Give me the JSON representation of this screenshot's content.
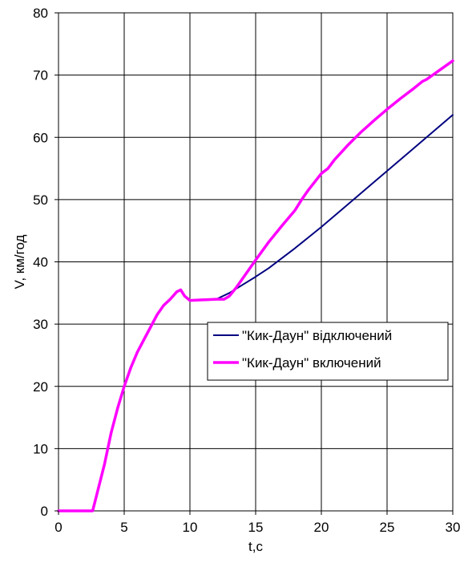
{
  "chart_data": {
    "type": "line",
    "xlabel": "t,c",
    "ylabel": "V, км/год",
    "xlim": [
      0,
      30
    ],
    "ylim": [
      0,
      80
    ],
    "x_ticks": [
      0,
      5,
      10,
      15,
      20,
      25,
      30
    ],
    "y_ticks": [
      0,
      10,
      20,
      30,
      40,
      50,
      60,
      70,
      80
    ],
    "grid": true,
    "legend_position": "center-right",
    "series": [
      {
        "name": "\"Кик-Даун\" відключений",
        "color": "#000080",
        "points": [
          [
            0,
            0
          ],
          [
            2.6,
            0
          ],
          [
            3.5,
            7.5
          ],
          [
            4.0,
            12.5
          ],
          [
            4.5,
            16.5
          ],
          [
            5.0,
            20.0
          ],
          [
            5.5,
            23.0
          ],
          [
            6.0,
            25.5
          ],
          [
            6.5,
            27.5
          ],
          [
            7.0,
            29.5
          ],
          [
            7.5,
            31.5
          ],
          [
            8.0,
            33.0
          ],
          [
            8.5,
            34.0
          ],
          [
            9.0,
            35.2
          ],
          [
            9.3,
            35.5
          ],
          [
            9.6,
            34.5
          ],
          [
            10.0,
            33.8
          ],
          [
            12.0,
            34.0
          ],
          [
            13.0,
            35.0
          ],
          [
            14.0,
            36.3
          ],
          [
            15.0,
            37.6
          ],
          [
            16.0,
            39.0
          ],
          [
            18.0,
            42.2
          ],
          [
            20.0,
            45.6
          ],
          [
            22.0,
            49.2
          ],
          [
            24.0,
            52.8
          ],
          [
            26.0,
            56.4
          ],
          [
            28.0,
            60.0
          ],
          [
            30.0,
            63.6
          ]
        ]
      },
      {
        "name": "\"Кик-Даун\" включений",
        "color": "#FF00FF",
        "points": [
          [
            0,
            0
          ],
          [
            2.6,
            0
          ],
          [
            3.5,
            7.5
          ],
          [
            4.0,
            12.5
          ],
          [
            4.5,
            16.5
          ],
          [
            5.0,
            20.0
          ],
          [
            5.5,
            23.0
          ],
          [
            6.0,
            25.5
          ],
          [
            6.5,
            27.5
          ],
          [
            7.0,
            29.5
          ],
          [
            7.5,
            31.5
          ],
          [
            8.0,
            33.0
          ],
          [
            8.5,
            34.0
          ],
          [
            9.0,
            35.2
          ],
          [
            9.3,
            35.5
          ],
          [
            9.6,
            34.5
          ],
          [
            10.0,
            33.8
          ],
          [
            12.0,
            34.0
          ],
          [
            12.6,
            34.0
          ],
          [
            13.0,
            34.5
          ],
          [
            13.5,
            35.8
          ],
          [
            14.0,
            37.3
          ],
          [
            15.0,
            40.3
          ],
          [
            16.0,
            43.2
          ],
          [
            17.0,
            45.8
          ],
          [
            18.0,
            48.3
          ],
          [
            18.5,
            50.0
          ],
          [
            19.0,
            51.5
          ],
          [
            20.0,
            54.2
          ],
          [
            20.5,
            55.0
          ],
          [
            21.0,
            56.4
          ],
          [
            22.0,
            58.7
          ],
          [
            23.0,
            60.8
          ],
          [
            24.0,
            62.7
          ],
          [
            25.0,
            64.5
          ],
          [
            26.0,
            66.2
          ],
          [
            27.0,
            67.8
          ],
          [
            27.7,
            69.0
          ],
          [
            28.0,
            69.3
          ],
          [
            29.0,
            70.8
          ],
          [
            30.0,
            72.3
          ]
        ]
      }
    ]
  }
}
